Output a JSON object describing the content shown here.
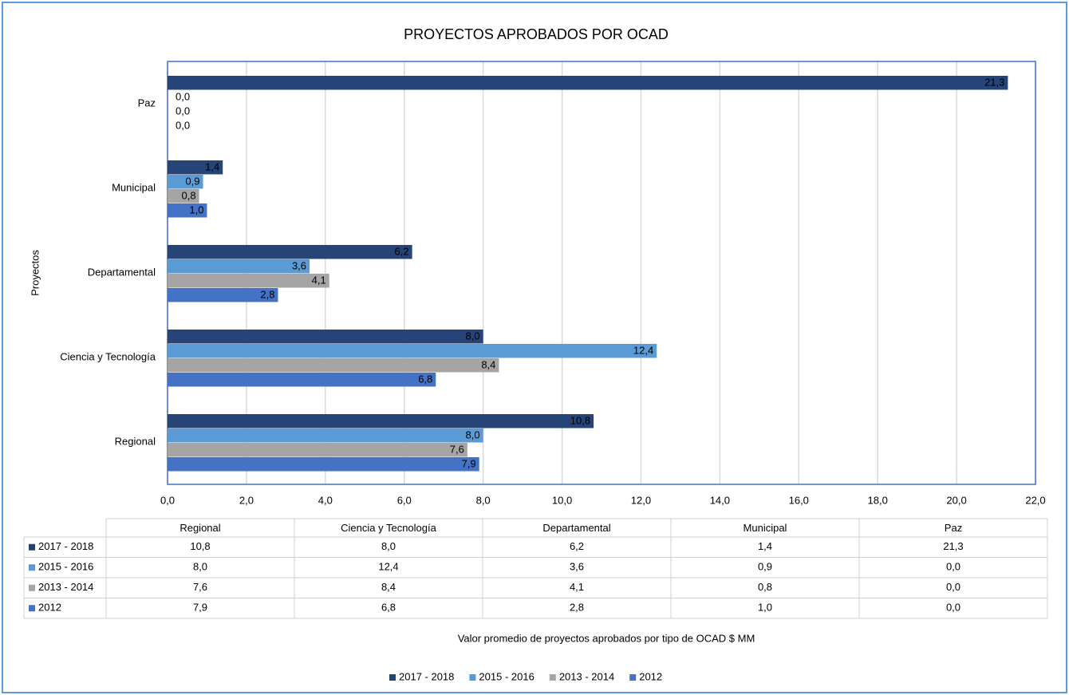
{
  "chart_data": {
    "type": "bar",
    "orientation": "horizontal",
    "title": "PROYECTOS APROBADOS POR OCAD",
    "x_label": "Valor promedio de proyectos aprobados por tipo de OCAD $ MM",
    "y_label": "Proyectos",
    "categories": [
      "Regional",
      "Ciencia y Tecnología",
      "Departamental",
      "Municipal",
      "Paz"
    ],
    "series": [
      {
        "name": "2017 - 2018",
        "color": "#264478",
        "values": [
          10.8,
          8.0,
          6.2,
          1.4,
          21.3
        ],
        "value_labels": [
          "10,8",
          "8,0",
          "6,2",
          "1,4",
          "21,3"
        ]
      },
      {
        "name": "2015 - 2016",
        "color": "#5b9bd5",
        "values": [
          8.0,
          12.4,
          3.6,
          0.9,
          0.0
        ],
        "value_labels": [
          "8,0",
          "12,4",
          "3,6",
          "0,9",
          "0,0"
        ]
      },
      {
        "name": "2013 - 2014",
        "color": "#a5a5a5",
        "values": [
          7.6,
          8.4,
          4.1,
          0.8,
          0.0
        ],
        "value_labels": [
          "7,6",
          "8,4",
          "4,1",
          "0,8",
          "0,0"
        ]
      },
      {
        "name": "2012",
        "color": "#4472c4",
        "values": [
          7.9,
          6.8,
          2.8,
          1.0,
          0.0
        ],
        "value_labels": [
          "7,9",
          "6,8",
          "2,8",
          "1,0",
          "0,0"
        ]
      }
    ],
    "xlim": [
      0,
      22
    ],
    "xticks": [
      {
        "value": 0,
        "label": "0,0"
      },
      {
        "value": 2,
        "label": "2,0"
      },
      {
        "value": 4,
        "label": "4,0"
      },
      {
        "value": 6,
        "label": "6,0"
      },
      {
        "value": 8,
        "label": "8,0"
      },
      {
        "value": 10,
        "label": "10,0"
      },
      {
        "value": 12,
        "label": "12,0"
      },
      {
        "value": 14,
        "label": "14,0"
      },
      {
        "value": 16,
        "label": "16,0"
      },
      {
        "value": 18,
        "label": "18,0"
      },
      {
        "value": 20,
        "label": "20,0"
      },
      {
        "value": 22,
        "label": "22,0"
      }
    ],
    "grid": true,
    "legend": "bottom",
    "data_table": true
  }
}
